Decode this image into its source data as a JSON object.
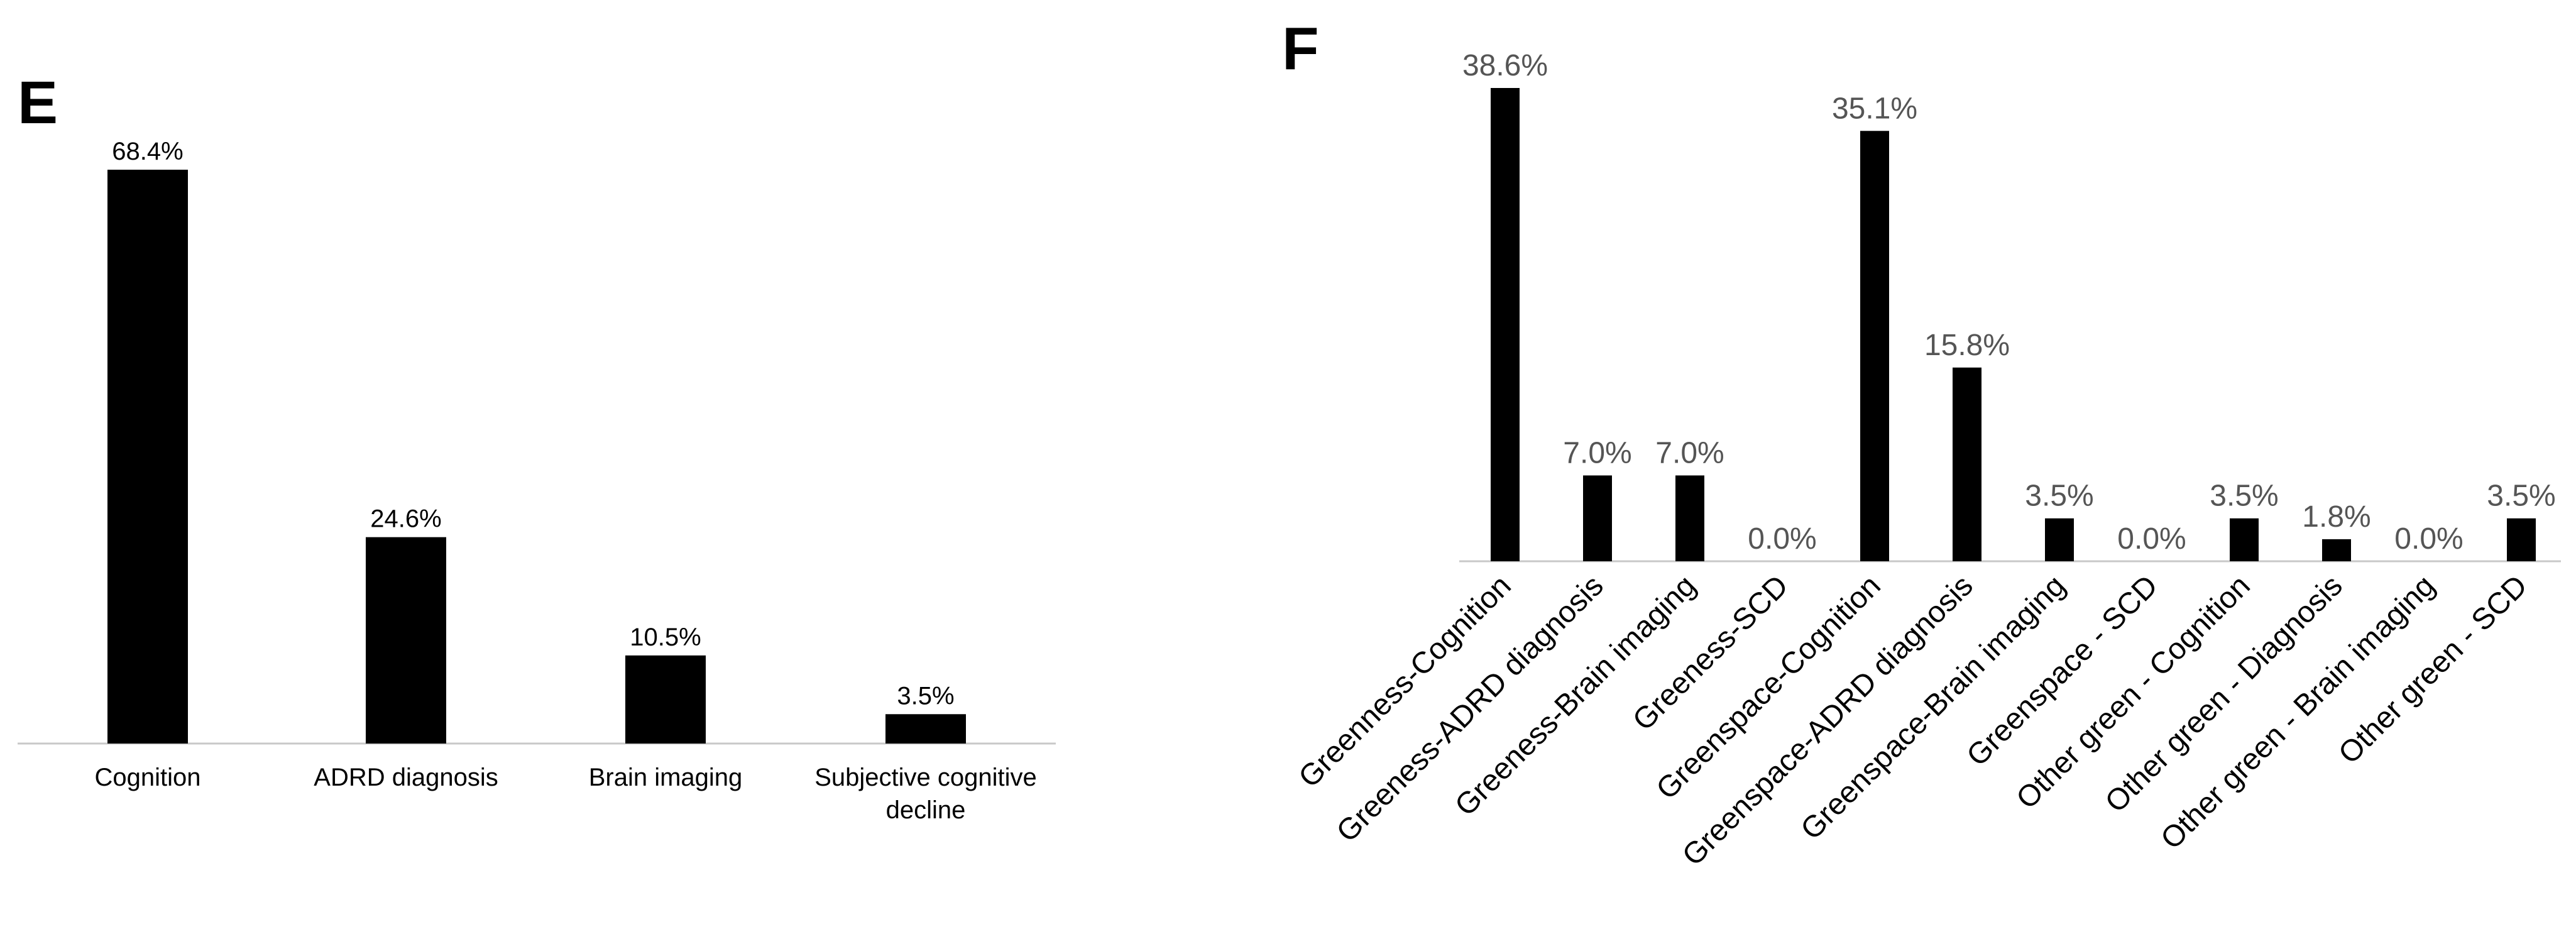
{
  "chart_data": [
    {
      "panel": "E",
      "type": "bar",
      "categories": [
        "Cognition",
        "ADRD diagnosis",
        "Brain imaging",
        "Subjective cognitive decline"
      ],
      "values": [
        68.4,
        24.6,
        10.5,
        3.5
      ],
      "data_labels": [
        "68.4%",
        "24.6%",
        "10.5%",
        "3.5%"
      ],
      "title": "",
      "xlabel": "",
      "ylabel": "",
      "ylim": [
        0,
        80
      ],
      "grid": false,
      "legend": "none",
      "bar_color": "#000000"
    },
    {
      "panel": "F",
      "type": "bar",
      "categories": [
        "Greenness-Cognition",
        "Greeness-ADRD diagnosis",
        "Greeness-Brain imaging",
        "Greeness-SCD",
        "Greenspace-Cognition",
        "Greenspace-ADRD diagnosis",
        "Greenspace-Brain imaging",
        "Greenspace - SCD",
        "Other green - Cognition",
        "Other green - Diagnosis",
        "Other green - Brain imaging",
        "Other green - SCD"
      ],
      "values": [
        38.6,
        7.0,
        7.0,
        0.0,
        35.1,
        15.8,
        3.5,
        0.0,
        3.5,
        1.8,
        0.0,
        3.5
      ],
      "data_labels": [
        "38.6%",
        "7.0%",
        "7.0%",
        "0.0%",
        "35.1%",
        "15.8%",
        "3.5%",
        "0.0%",
        "3.5%",
        "1.8%",
        "0.0%",
        "3.5%"
      ],
      "title": "",
      "xlabel": "",
      "ylabel": "",
      "ylim": [
        0,
        45
      ],
      "grid": false,
      "legend": "none",
      "bar_color": "#000000",
      "tick_label_rotation_deg": -45
    }
  ]
}
